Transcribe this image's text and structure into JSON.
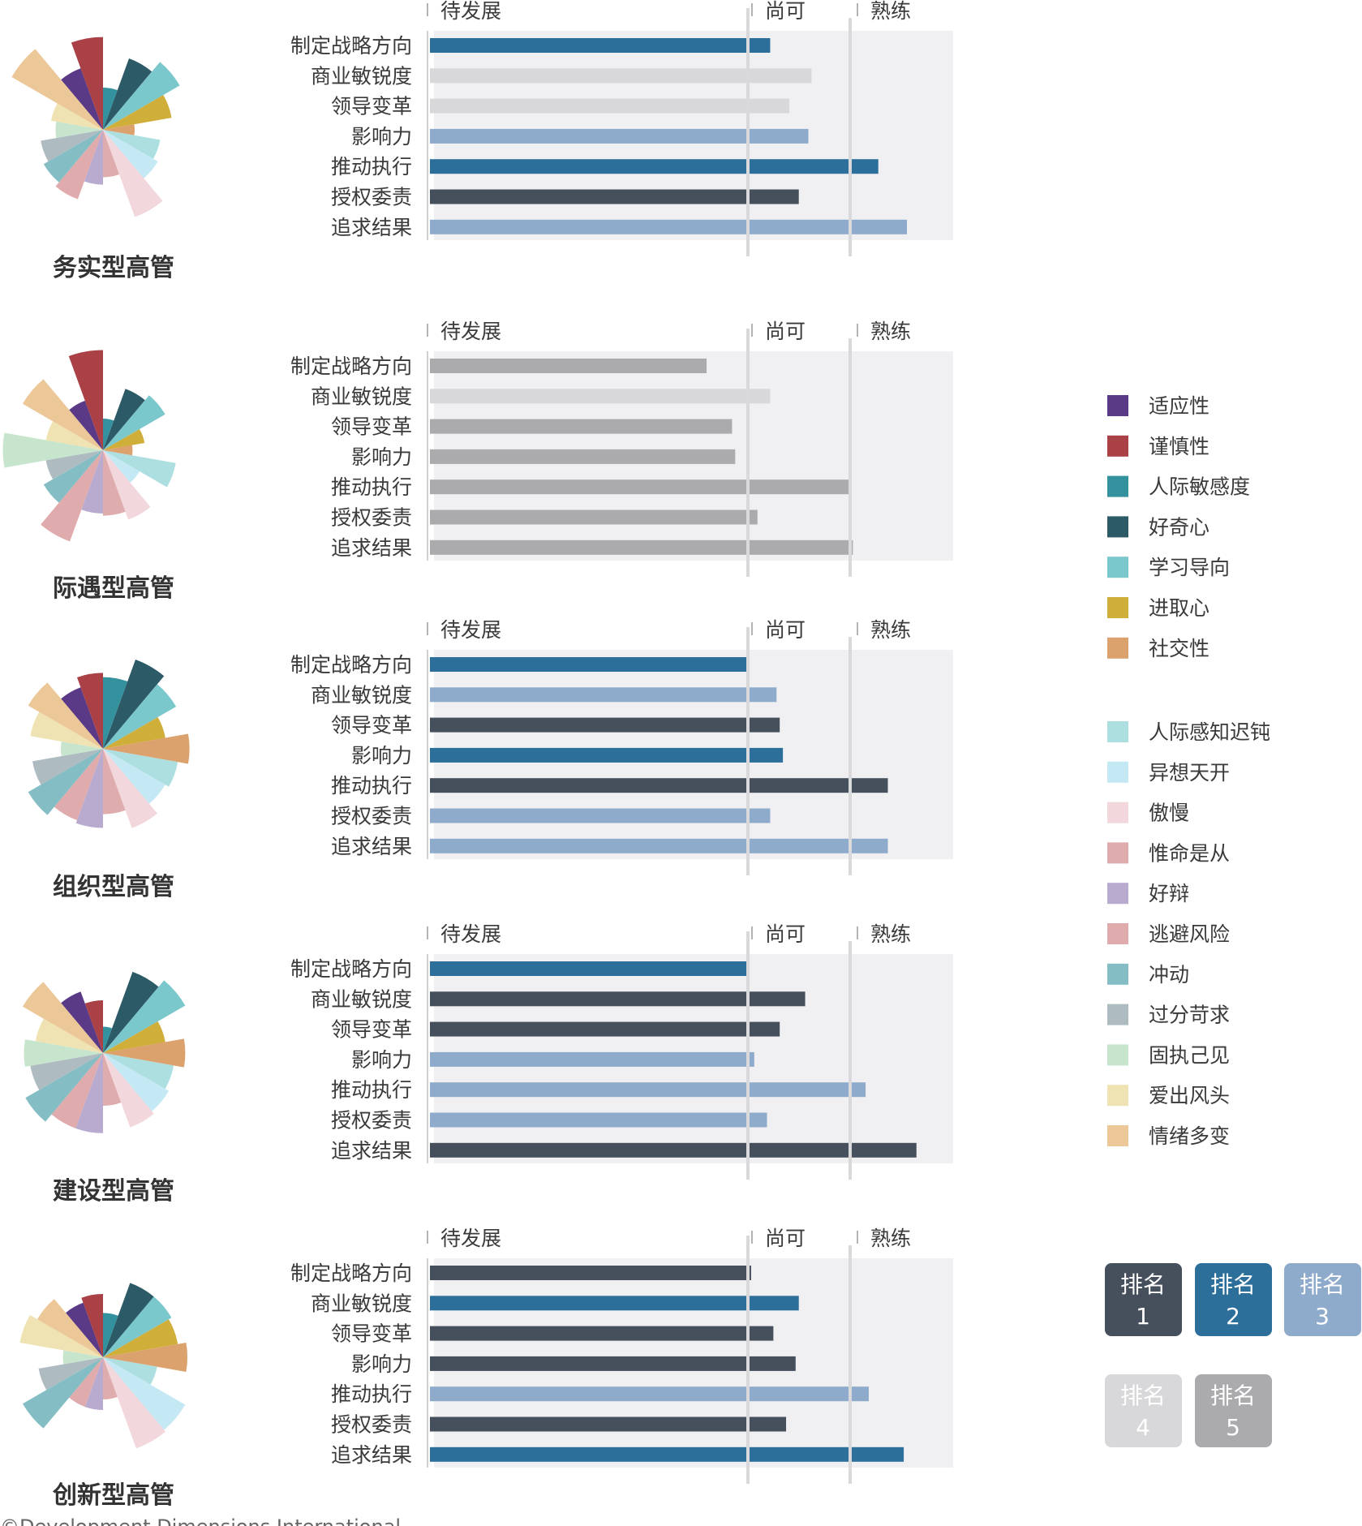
{
  "scale_labels": [
    "待发展",
    "尚可",
    "熟练"
  ],
  "competencies": [
    "制定战略方向",
    "商业敏锐度",
    "领导变革",
    "影响力",
    "推动执行",
    "授权委责",
    "追求结果"
  ],
  "chart_data": [
    {
      "type": "bar",
      "name": "务实型高管",
      "categories": [
        "制定战略方向",
        "商业敏锐度",
        "领导变革",
        "影响力",
        "推动执行",
        "授权委责",
        "追求结果"
      ],
      "values": [
        1.07,
        1.2,
        1.13,
        1.19,
        1.41,
        1.16,
        1.5
      ],
      "ranks": [
        2,
        4,
        4,
        3,
        2,
        1,
        3
      ]
    },
    {
      "type": "bar",
      "name": "际遇型高管",
      "categories": [
        "制定战略方向",
        "商业敏锐度",
        "领导变革",
        "影响力",
        "推动执行",
        "授权委责",
        "追求结果"
      ],
      "values": [
        0.87,
        1.07,
        0.95,
        0.96,
        1.32,
        1.03,
        1.33
      ],
      "ranks": [
        5,
        4,
        5,
        5,
        5,
        5,
        5
      ]
    },
    {
      "type": "bar",
      "name": "组织型高管",
      "categories": [
        "制定战略方向",
        "商业敏锐度",
        "领导变革",
        "影响力",
        "推动执行",
        "授权委责",
        "追求结果"
      ],
      "values": [
        1.0,
        1.09,
        1.1,
        1.11,
        1.44,
        1.07,
        1.44
      ],
      "ranks": [
        2,
        3,
        1,
        2,
        1,
        3,
        3
      ]
    },
    {
      "type": "bar",
      "name": "建设型高管",
      "categories": [
        "制定战略方向",
        "商业敏锐度",
        "领导变革",
        "影响力",
        "推动执行",
        "授权委责",
        "追求结果"
      ],
      "values": [
        1.0,
        1.18,
        1.1,
        1.02,
        1.37,
        1.06,
        1.53
      ],
      "ranks": [
        2,
        1,
        1,
        3,
        3,
        3,
        1
      ]
    },
    {
      "type": "bar",
      "name": "创新型高管",
      "categories": [
        "制定战略方向",
        "商业敏锐度",
        "领导变革",
        "影响力",
        "推动执行",
        "授权委责",
        "追求结果"
      ],
      "values": [
        1.01,
        1.16,
        1.08,
        1.15,
        1.38,
        1.12,
        1.49
      ],
      "ranks": [
        1,
        2,
        1,
        1,
        3,
        1,
        2
      ]
    }
  ],
  "traits": [
    "适应性",
    "谨慎性",
    "人际敏感度",
    "好奇心",
    "学习导向",
    "进取心",
    "社交性",
    "人际感知迟钝",
    "异想天开",
    "傲慢",
    "惟命是从",
    "好辩",
    "逃避风险",
    "冲动",
    "过分苛求",
    "固执己见",
    "爱出风头",
    "情绪多变"
  ],
  "trait_colors": [
    "#5a3a86",
    "#a94146",
    "#33929d",
    "#2d5a67",
    "#7ac7cc",
    "#d0ae3a",
    "#dba26d",
    "#addfe0",
    "#c5e8f5",
    "#f2d7dc",
    "#dfacae",
    "#b9aad0",
    "#e0abad",
    "#84bec4",
    "#aebcc2",
    "#c7e5cd",
    "#efe3b3",
    "#ecc798"
  ],
  "roses": [
    [
      0.62,
      0.88,
      0.4,
      0.72,
      0.84,
      0.66,
      0.3,
      0.55,
      0.6,
      0.88,
      0.45,
      0.52,
      0.7,
      0.65,
      0.6,
      0.45,
      0.5,
      1.0
    ],
    [
      0.5,
      0.95,
      0.3,
      0.62,
      0.68,
      0.4,
      0.28,
      0.7,
      0.4,
      0.7,
      0.62,
      0.6,
      0.92,
      0.65,
      0.55,
      0.95,
      0.55,
      0.88
    ],
    [
      0.62,
      0.72,
      0.68,
      0.9,
      0.8,
      0.6,
      0.82,
      0.72,
      0.68,
      0.8,
      0.62,
      0.75,
      0.72,
      0.82,
      0.68,
      0.4,
      0.7,
      0.82
    ],
    [
      0.62,
      0.5,
      0.25,
      0.82,
      0.9,
      0.6,
      0.78,
      0.68,
      0.72,
      0.75,
      0.5,
      0.76,
      0.76,
      0.85,
      0.7,
      0.75,
      0.65,
      0.88
    ],
    [
      0.55,
      0.6,
      0.42,
      0.75,
      0.75,
      0.72,
      0.8,
      0.52,
      0.9,
      0.92,
      0.4,
      0.5,
      0.5,
      0.88,
      0.62,
      0.38,
      0.8,
      0.72
    ]
  ],
  "rank_legend": [
    {
      "label": "排名",
      "num": "1",
      "color": "#45505c"
    },
    {
      "label": "排名",
      "num": "2",
      "color": "#2b6f9a"
    },
    {
      "label": "排名",
      "num": "3",
      "color": "#8fabcb"
    },
    {
      "label": "排名",
      "num": "4",
      "color": "#d8d8da"
    },
    {
      "label": "排名",
      "num": "5",
      "color": "#ababae"
    }
  ],
  "copyright": "©Development Dimensions International"
}
